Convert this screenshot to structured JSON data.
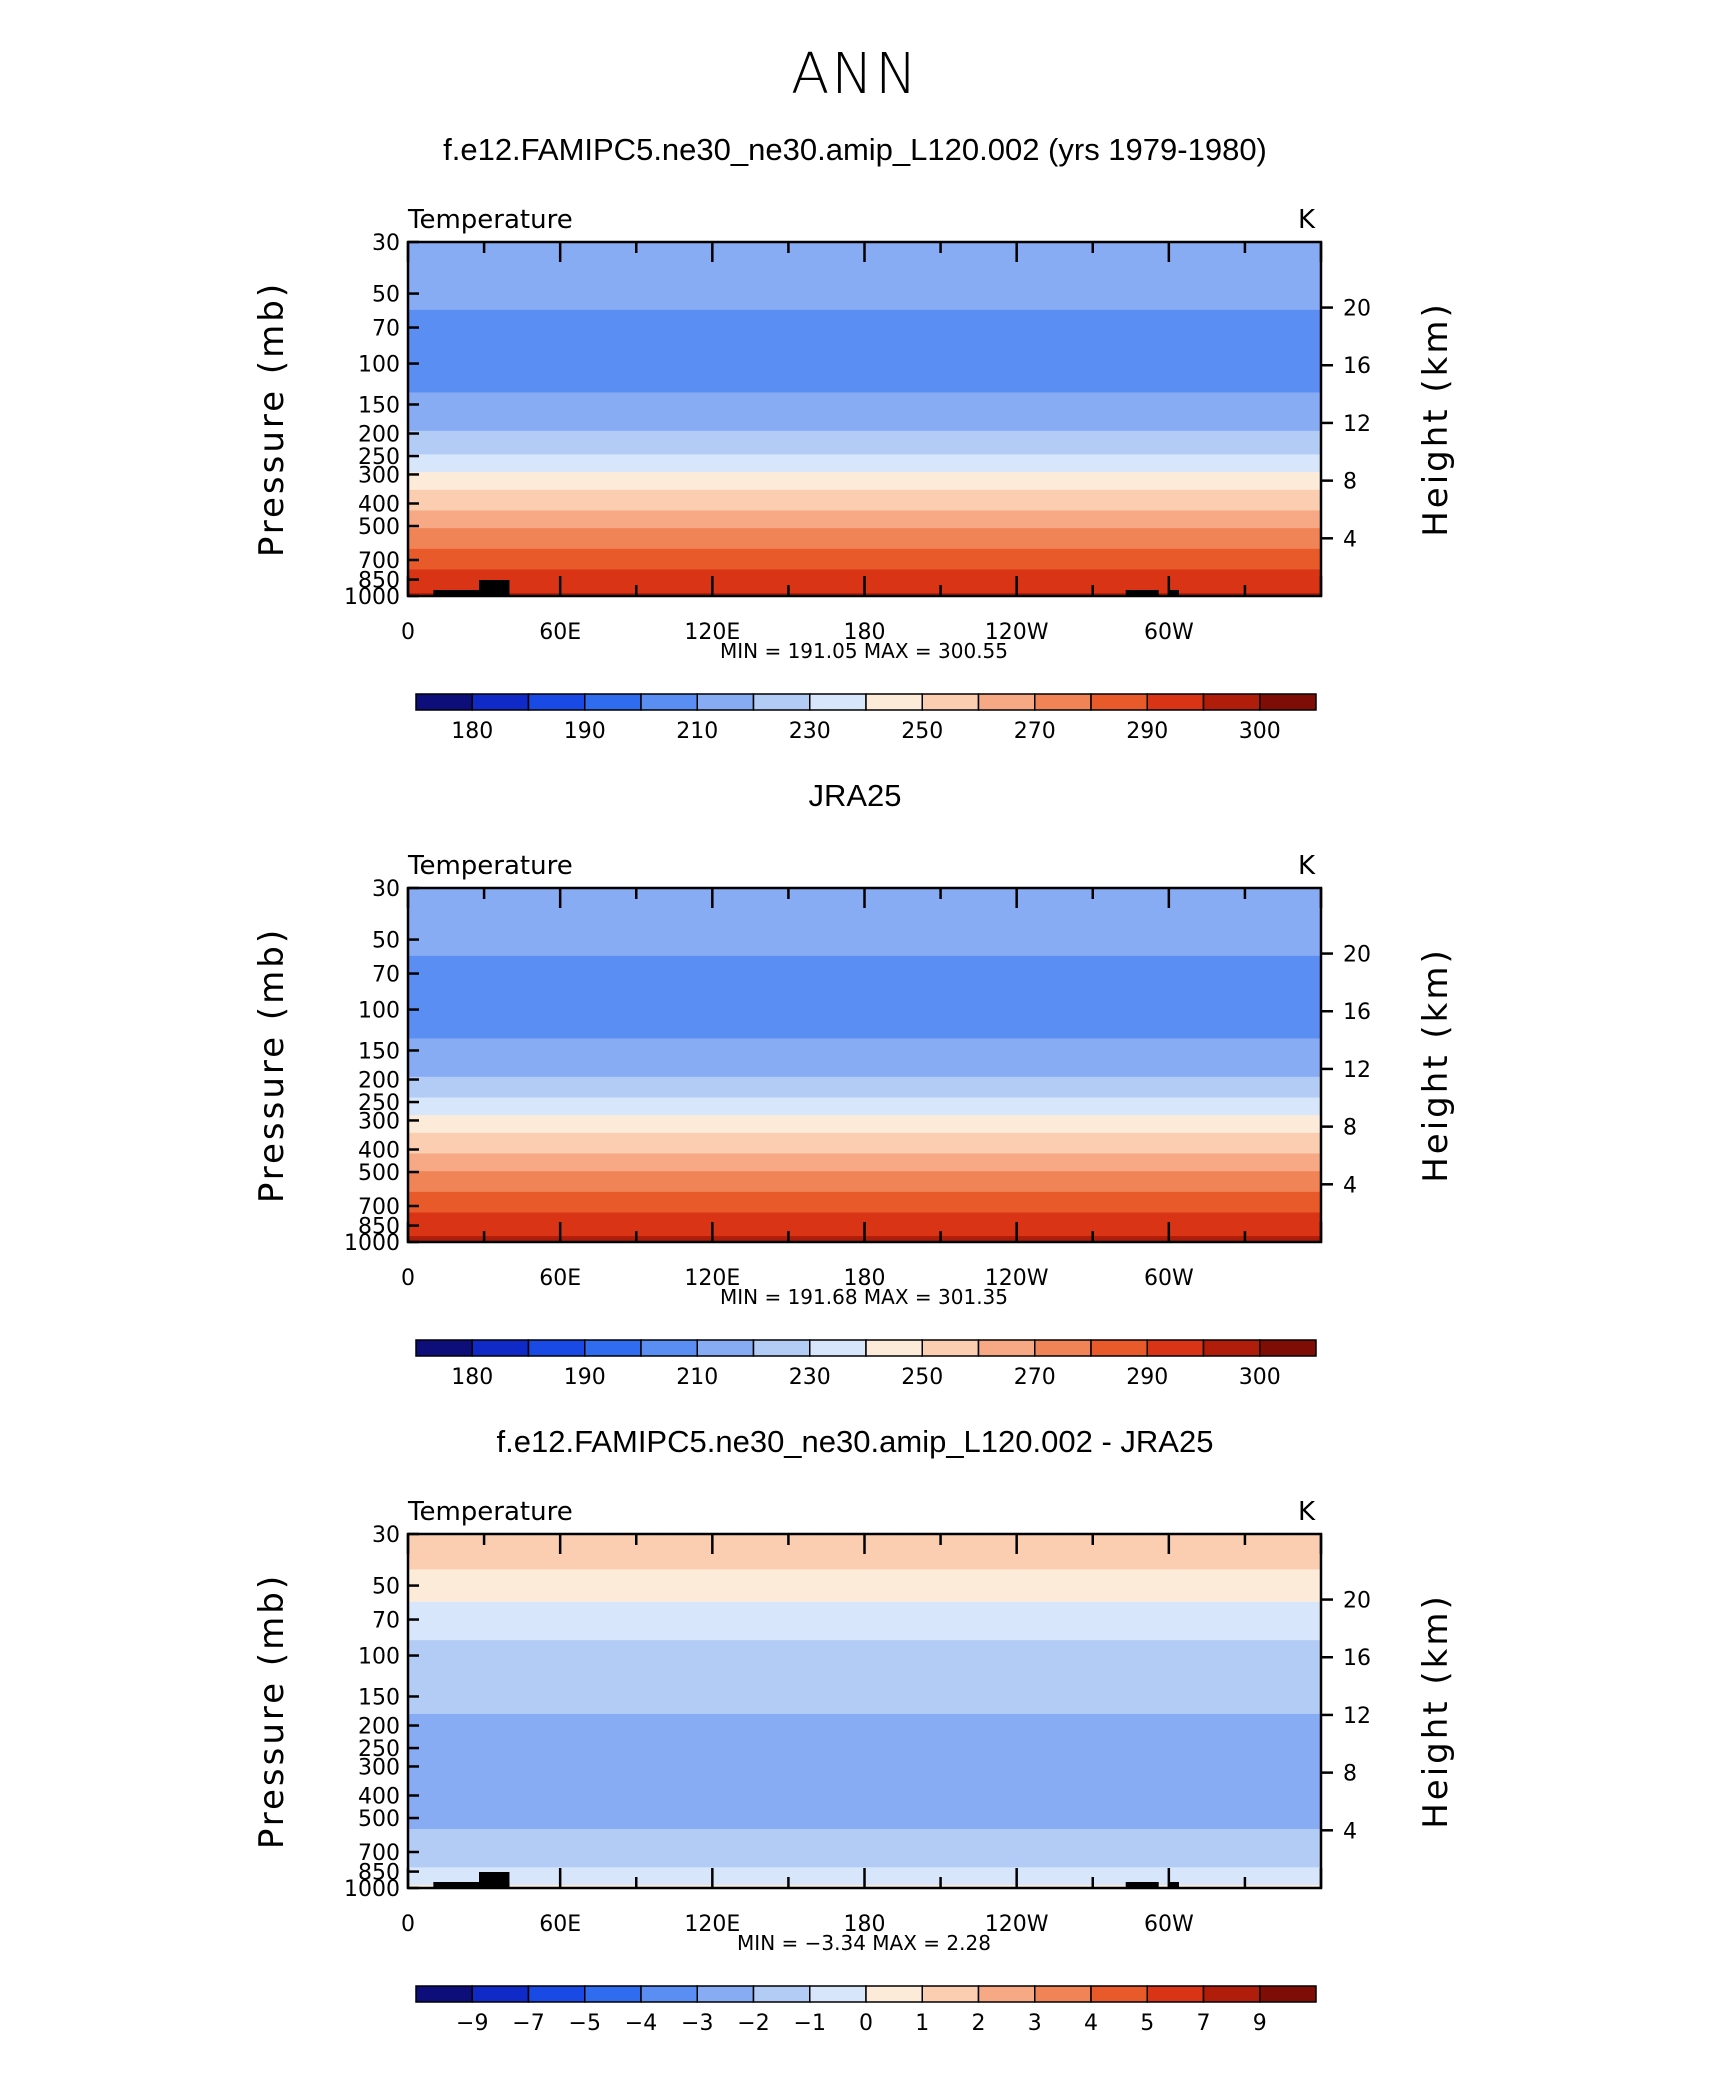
{
  "main_title": "ANN",
  "colors": {
    "palette": [
      "#0d0e7a",
      "#0f2ac7",
      "#1a4ae6",
      "#2f6cf0",
      "#5b8ef2",
      "#88acf4",
      "#b3ccf6",
      "#d7e6fa",
      "#fdebd9",
      "#fbcdb1",
      "#f6a984",
      "#f08457",
      "#e95a2b",
      "#d93415",
      "#b01d0a",
      "#7e0d05"
    ],
    "frame": "#000000"
  },
  "chart_data": [
    {
      "type": "heatmap",
      "title": "f.e12.FAMIPC5.ne30_ne30.amip_L120.002 (yrs 1979-1980)",
      "subtitle_left": "Temperature",
      "units": "K",
      "ylabel": "Pressure (mb)",
      "ylabel_right": "Height (km)",
      "xticks": [
        "0",
        "60E",
        "120E",
        "180",
        "120W",
        "60W"
      ],
      "yticks": [
        "30",
        "50",
        "70",
        "100",
        "150",
        "200",
        "250",
        "300",
        "400",
        "500",
        "700",
        "850",
        "1000"
      ],
      "yticks_right": [
        "20",
        "16",
        "12",
        "8",
        "4"
      ],
      "stats_text": "MIN =  191.05   MAX =  300.55",
      "min": 191.05,
      "max": 300.55,
      "colorbar_labels": [
        "180",
        "190",
        "210",
        "230",
        "250",
        "270",
        "290",
        "300"
      ],
      "colorbar_levels": [
        175,
        180,
        185,
        190,
        200,
        210,
        220,
        230,
        240,
        250,
        260,
        270,
        280,
        290,
        295,
        300
      ],
      "profile": [
        [
          30,
          209.5
        ],
        [
          40,
          207
        ],
        [
          50,
          204
        ],
        [
          70,
          196
        ],
        [
          100,
          192
        ],
        [
          150,
          203
        ],
        [
          200,
          211
        ],
        [
          250,
          221
        ],
        [
          300,
          232
        ],
        [
          400,
          247
        ],
        [
          500,
          259
        ],
        [
          700,
          276
        ],
        [
          850,
          284
        ],
        [
          1000,
          292
        ]
      ],
      "orography": true
    },
    {
      "type": "heatmap",
      "title": "JRA25",
      "subtitle_left": "Temperature",
      "units": "K",
      "ylabel": "Pressure (mb)",
      "ylabel_right": "Height (km)",
      "xticks": [
        "0",
        "60E",
        "120E",
        "180",
        "120W",
        "60W"
      ],
      "yticks": [
        "30",
        "50",
        "70",
        "100",
        "150",
        "200",
        "250",
        "300",
        "400",
        "500",
        "700",
        "850",
        "1000"
      ],
      "yticks_right": [
        "20",
        "16",
        "12",
        "8",
        "4"
      ],
      "stats_text": "MIN =  191.68   MAX =  301.35",
      "min": 191.68,
      "max": 301.35,
      "colorbar_labels": [
        "180",
        "190",
        "210",
        "230",
        "250",
        "270",
        "290",
        "300"
      ],
      "colorbar_levels": [
        175,
        180,
        185,
        190,
        200,
        210,
        220,
        230,
        240,
        250,
        260,
        270,
        280,
        290,
        295,
        300
      ],
      "profile": [
        [
          30,
          209
        ],
        [
          40,
          206.5
        ],
        [
          50,
          204
        ],
        [
          70,
          196
        ],
        [
          100,
          192
        ],
        [
          150,
          203
        ],
        [
          200,
          211
        ],
        [
          250,
          222
        ],
        [
          300,
          233
        ],
        [
          400,
          248
        ],
        [
          500,
          260
        ],
        [
          700,
          277
        ],
        [
          850,
          285
        ],
        [
          1000,
          293
        ]
      ],
      "orography": false
    },
    {
      "type": "heatmap",
      "title": "f.e12.FAMIPC5.ne30_ne30.amip_L120.002 - JRA25",
      "subtitle_left": "Temperature",
      "units": "K",
      "ylabel": "Pressure (mb)",
      "ylabel_right": "Height (km)",
      "xticks": [
        "0",
        "60E",
        "120E",
        "180",
        "120W",
        "60W"
      ],
      "yticks": [
        "30",
        "50",
        "70",
        "100",
        "150",
        "200",
        "250",
        "300",
        "400",
        "500",
        "700",
        "850",
        "1000"
      ],
      "yticks_right": [
        "20",
        "16",
        "12",
        "8",
        "4"
      ],
      "stats_text": "MIN =    −3.34   MAX =     2.28",
      "min": -3.34,
      "max": 2.28,
      "colorbar_labels": [
        "−9",
        "−7",
        "−5",
        "−4",
        "−3",
        "−2",
        "−1",
        "0",
        "1",
        "2",
        "3",
        "4",
        "5",
        "7",
        "9"
      ],
      "colorbar_levels": [
        -9,
        -7,
        -5,
        -4,
        -3,
        -2,
        -1,
        0,
        1,
        2,
        3,
        4,
        5,
        7,
        9
      ],
      "profile": [
        [
          30,
          1.4
        ],
        [
          40,
          1.2
        ],
        [
          50,
          0.5
        ],
        [
          70,
          -0.6
        ],
        [
          100,
          -1.3
        ],
        [
          150,
          -1.6
        ],
        [
          200,
          -2.3
        ],
        [
          250,
          -2.5
        ],
        [
          300,
          -2.6
        ],
        [
          400,
          -2.4
        ],
        [
          500,
          -2.2
        ],
        [
          700,
          -1.5
        ],
        [
          850,
          -0.8
        ],
        [
          1000,
          0.2
        ]
      ],
      "orography": true
    }
  ]
}
